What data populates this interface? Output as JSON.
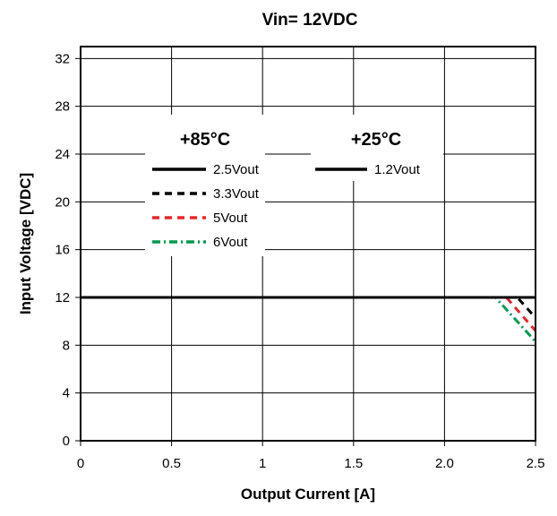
{
  "chart_data": {
    "type": "line",
    "title": "Vin= 12VDC",
    "xlabel": "Output Current [A]",
    "ylabel": "Input Voltage [VDC]",
    "xlim": [
      0,
      2.5
    ],
    "ylim": [
      0,
      33
    ],
    "x_ticks": [
      0,
      0.5,
      1,
      1.5,
      2.0,
      2.5
    ],
    "x_tick_labels": [
      "0",
      "0.5",
      "1",
      "1.5",
      "2.0",
      "2.5"
    ],
    "y_ticks": [
      0,
      4,
      8,
      12,
      16,
      20,
      24,
      28,
      32
    ],
    "y_tick_labels": [
      "0",
      "4",
      "8",
      "12",
      "16",
      "20",
      "24",
      "28",
      "32"
    ],
    "grid": true,
    "legend_groups": [
      {
        "heading": "+85°C",
        "entries": [
          "2.5Vout",
          "3.3Vout",
          "5Vout",
          "6Vout"
        ]
      },
      {
        "heading": "+25°C",
        "entries": [
          "1.2Vout"
        ]
      }
    ],
    "series": [
      {
        "name": "2.5Vout",
        "color": "#000000",
        "dash": "solid",
        "points": [
          [
            0,
            12
          ],
          [
            2.5,
            12
          ]
        ]
      },
      {
        "name": "3.3Vout",
        "color": "#000000",
        "dash": "dashed",
        "points": [
          [
            0,
            12
          ],
          [
            2.4,
            12
          ],
          [
            2.5,
            10.3
          ]
        ]
      },
      {
        "name": "5Vout",
        "color": "#e8262d",
        "dash": "dashed",
        "points": [
          [
            0,
            12
          ],
          [
            2.34,
            12
          ],
          [
            2.5,
            9.2
          ]
        ]
      },
      {
        "name": "6Vout",
        "color": "#009a4e",
        "dash": "dashdot",
        "points": [
          [
            0,
            12
          ],
          [
            2.28,
            12
          ],
          [
            2.5,
            8.3
          ]
        ]
      },
      {
        "name": "1.2Vout",
        "color": "#000000",
        "dash": "solid",
        "points": [
          [
            0,
            12
          ],
          [
            2.5,
            12
          ]
        ]
      }
    ]
  }
}
